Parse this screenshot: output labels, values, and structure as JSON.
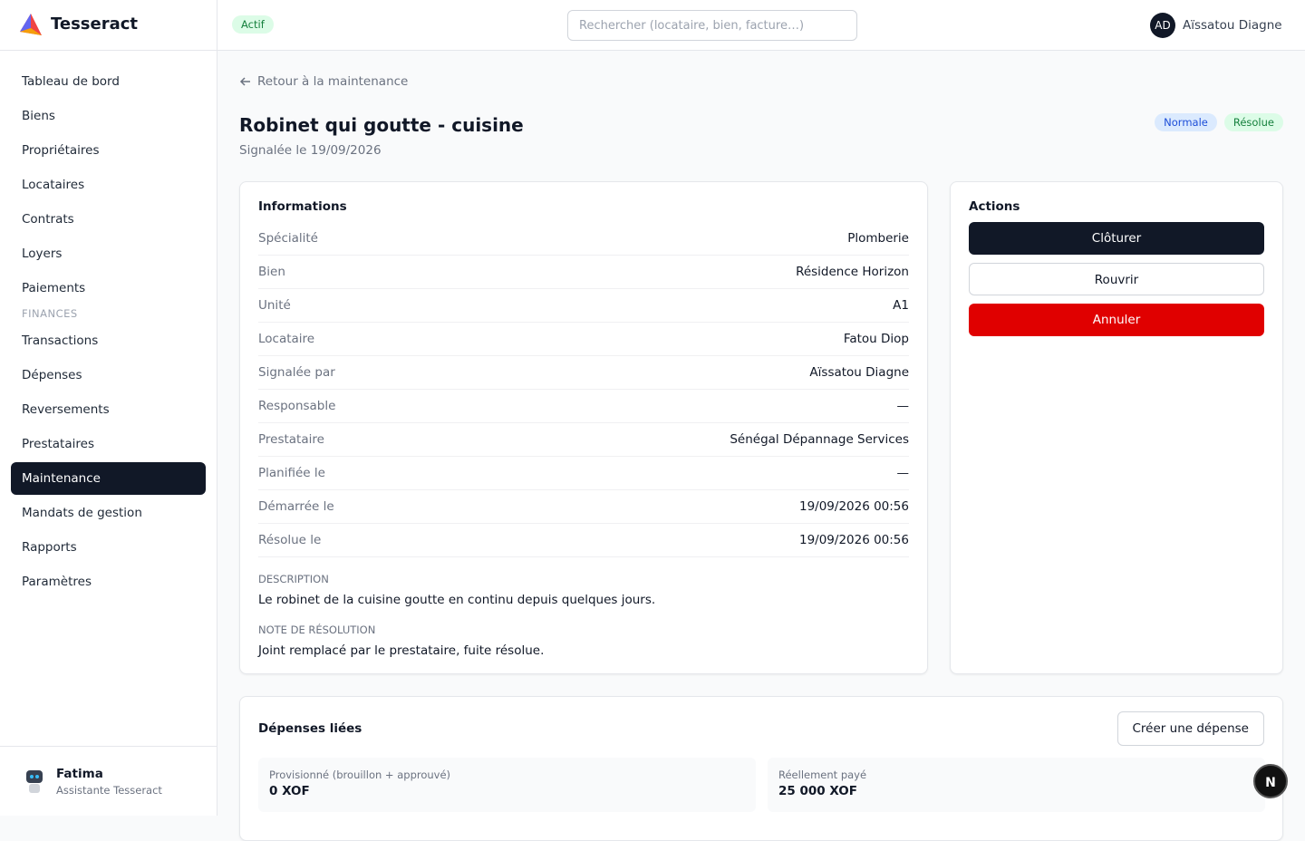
{
  "brand": "Tesseract",
  "nav": [
    "Tableau de bord",
    "Biens",
    "Propriétaires",
    "Locataires",
    "Contrats",
    "Loyers",
    "Paiements"
  ],
  "nav_section": "FINANCES",
  "nav_finances": [
    "Transactions",
    "Dépenses",
    "Reversements",
    "Prestataires",
    "Maintenance",
    "Mandats de gestion",
    "Rapports",
    "Paramètres"
  ],
  "active_finance_index": 4,
  "user": {
    "name": "Fatima",
    "role": "Assistante Tesseract"
  },
  "header": {
    "status": "Actif",
    "search_placeholder": "Rechercher (locataire, bien, facture…)",
    "avatar": "AD",
    "user_name": "Aïssatou Diagne"
  },
  "back": "Retour à la maintenance",
  "title": "Robinet qui goutte - cuisine",
  "subtitle": "Signalée le 19/09/2026",
  "badges": [
    "Normale",
    "Résolue"
  ],
  "info": {
    "title": "Informations",
    "rows": [
      [
        "Spécialité",
        "Plomberie"
      ],
      [
        "Bien",
        "Résidence Horizon"
      ],
      [
        "Unité",
        "A1"
      ],
      [
        "Locataire",
        "Fatou Diop"
      ],
      [
        "Signalée par",
        "Aïssatou Diagne"
      ],
      [
        "Responsable",
        "—"
      ],
      [
        "Prestataire",
        "Sénégal Dépannage Services"
      ],
      [
        "Planifiée le",
        "—"
      ],
      [
        "Démarrée le",
        "19/09/2026 00:56"
      ],
      [
        "Résolue le",
        "19/09/2026 00:56"
      ]
    ],
    "description_label": "DESCRIPTION",
    "description": "Le robinet de la cuisine goutte en continu depuis quelques jours.",
    "note_label": "NOTE DE RÉSOLUTION",
    "note": "Joint remplacé par le prestataire, fuite résolue."
  },
  "actions": {
    "title": "Actions",
    "buttons": [
      "Clôturer",
      "Rouvrir",
      "Annuler"
    ]
  },
  "expenses": {
    "title": "Dépenses liées",
    "create": "Créer une dépense",
    "cards": [
      {
        "label": "Provisionné (brouillon + approuvé)",
        "value": "0 XOF"
      },
      {
        "label": "Réellement payé",
        "value": "25 000 XOF"
      }
    ]
  },
  "dev_badge": "N"
}
